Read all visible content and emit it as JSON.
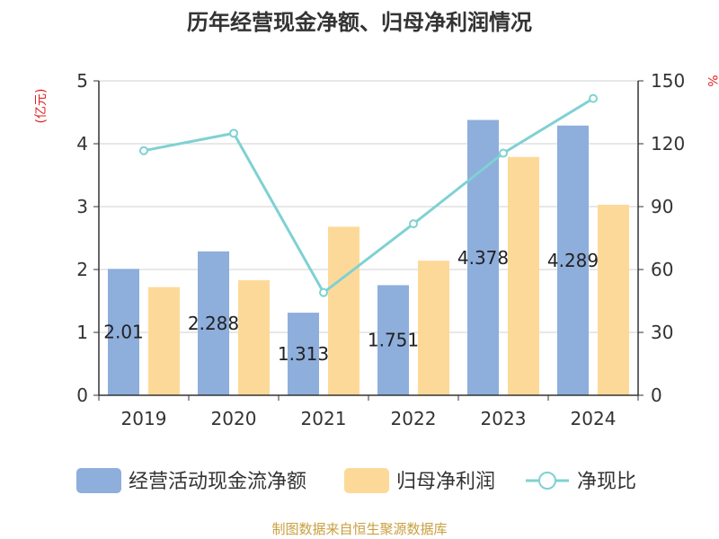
{
  "chart_data": {
    "type": "bar",
    "title": "历年经营现金净额、归母净利润情况",
    "categories": [
      "2019",
      "2020",
      "2021",
      "2022",
      "2023",
      "2024"
    ],
    "series": [
      {
        "name": "经营活动现金流净额",
        "type": "bar",
        "axis": "left",
        "color": "#8eaedc",
        "values": [
          2.01,
          2.288,
          1.313,
          1.751,
          4.378,
          4.289
        ],
        "labels": [
          "2.01",
          "2.288",
          "1.313",
          "1.751",
          "4.378",
          "4.289"
        ]
      },
      {
        "name": "归母净利润",
        "type": "bar",
        "axis": "left",
        "color": "#fdd999",
        "values": [
          1.72,
          1.83,
          2.68,
          2.14,
          3.79,
          3.03
        ]
      },
      {
        "name": "净现比",
        "type": "line",
        "axis": "right",
        "color": "#7fd1d3",
        "values": [
          116.7,
          125.0,
          49.0,
          81.8,
          115.5,
          141.6
        ]
      }
    ],
    "y_left": {
      "label": "(亿元)",
      "ylim": [
        0,
        5
      ],
      "ticks": [
        "0",
        "1",
        "2",
        "3",
        "4",
        "5"
      ]
    },
    "y_right": {
      "label": "%",
      "ylim": [
        0,
        150
      ],
      "ticks": [
        "0",
        "30",
        "60",
        "90",
        "120",
        "150"
      ]
    },
    "grid": true,
    "legend_position": "bottom"
  },
  "source": "制图数据来自恒生聚源数据库"
}
